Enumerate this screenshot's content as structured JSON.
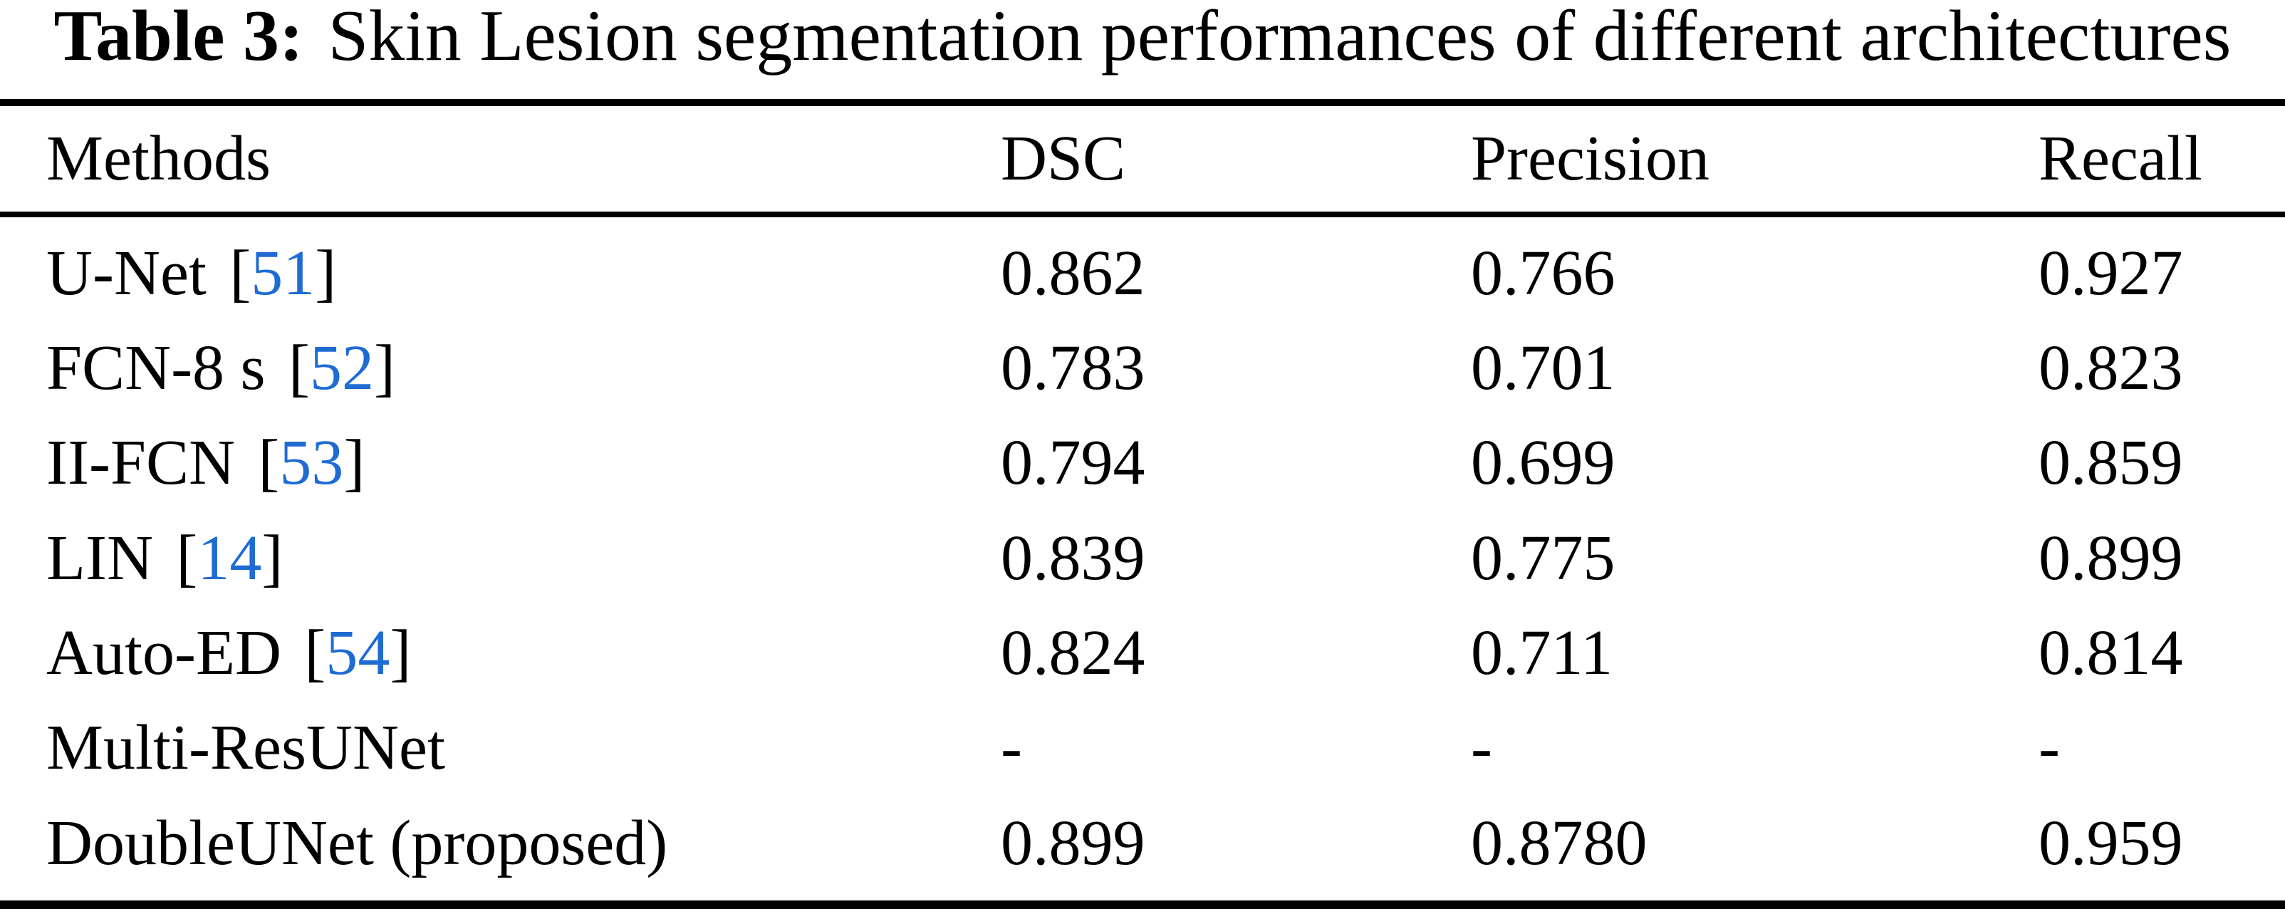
{
  "title": {
    "label": "Table 3:",
    "text": "Skin Lesion segmentation performances of different architectures"
  },
  "colors": {
    "citation_blue": "#1E6BD4",
    "text": "#000000",
    "background": "#ffffff"
  },
  "table": {
    "columns": [
      "Methods",
      "DSC",
      "Precision",
      "Recall"
    ],
    "rows": [
      {
        "method": "U-Net",
        "ref_open": "[",
        "ref": "51",
        "ref_close": "]",
        "dsc": "0.862",
        "precision": "0.766",
        "recall": "0.927"
      },
      {
        "method": "FCN-8 s",
        "ref_open": "[",
        "ref": "52",
        "ref_close": "]",
        "dsc": "0.783",
        "precision": "0.701",
        "recall": "0.823"
      },
      {
        "method": "II-FCN",
        "ref_open": "[",
        "ref": "53",
        "ref_close": "]",
        "dsc": "0.794",
        "precision": "0.699",
        "recall": "0.859"
      },
      {
        "method": "LIN",
        "ref_open": "[",
        "ref": "14",
        "ref_close": "]",
        "dsc": "0.839",
        "precision": "0.775",
        "recall": "0.899"
      },
      {
        "method": "Auto-ED",
        "ref_open": "[",
        "ref": "54",
        "ref_close": "]",
        "dsc": "0.824",
        "precision": "0.711",
        "recall": "0.814"
      },
      {
        "method": "Multi-ResUNet",
        "ref_open": "",
        "ref": "",
        "ref_close": "",
        "dsc": "-",
        "precision": "-",
        "recall": "-"
      },
      {
        "method": "DoubleUNet (proposed)",
        "ref_open": "",
        "ref": "",
        "ref_close": "",
        "dsc": "0.899",
        "precision": "0.8780",
        "recall": "0.959"
      }
    ]
  }
}
